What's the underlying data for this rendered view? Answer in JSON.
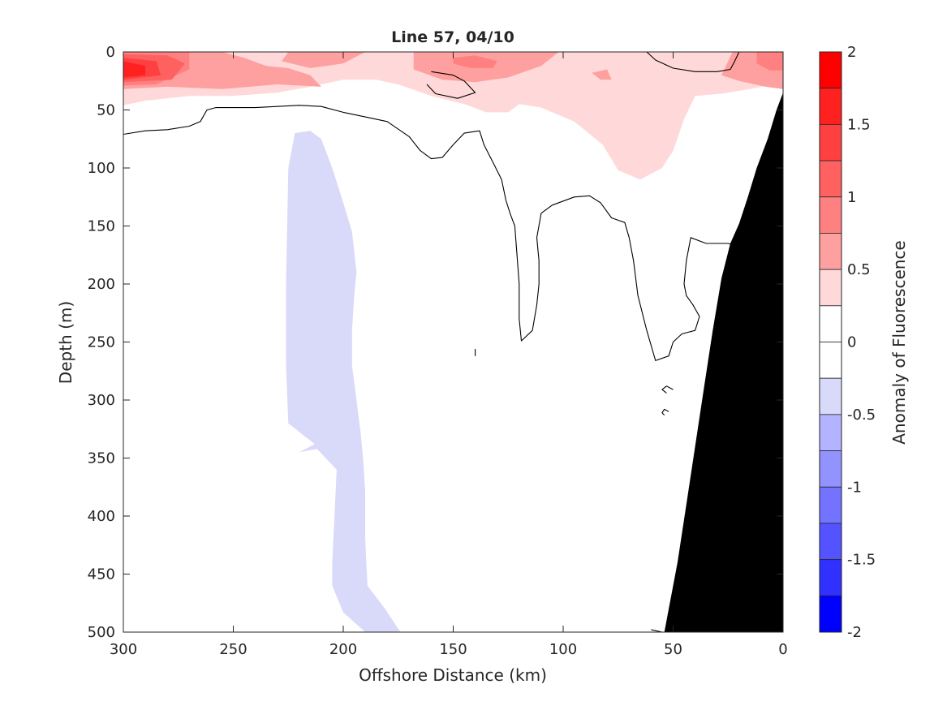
{
  "chart_data": {
    "type": "heatmap",
    "title": "Line 57, 04/10",
    "xlabel": "Offshore Distance (km)",
    "ylabel": "Depth (m)",
    "xlim": [
      300,
      0
    ],
    "ylim": [
      0,
      500
    ],
    "x_reversed": true,
    "y_reversed": true,
    "x_ticks": [
      "300",
      "250",
      "200",
      "150",
      "100",
      "50",
      "0"
    ],
    "y_ticks": [
      "0",
      "50",
      "100",
      "150",
      "200",
      "250",
      "300",
      "350",
      "400",
      "450",
      "500"
    ],
    "colorbar": {
      "label": "Anomaly of Fluorescence",
      "clim": [
        -2,
        2
      ],
      "step": 0.25,
      "ticks": [
        "2",
        "1.5",
        "1",
        "0.5",
        "0",
        "-0.5",
        "-1",
        "-1.5",
        "-2"
      ],
      "levels": [
        {
          "range": [
            1.75,
            2
          ],
          "color": "#ff0000"
        },
        {
          "range": [
            1.5,
            1.75
          ],
          "color": "#ff2020"
        },
        {
          "range": [
            1.25,
            1.5
          ],
          "color": "#ff4040"
        },
        {
          "range": [
            1,
            1.25
          ],
          "color": "#ff6060"
        },
        {
          "range": [
            0.75,
            1
          ],
          "color": "#ff8080"
        },
        {
          "range": [
            0.5,
            0.75
          ],
          "color": "#ffa0a0"
        },
        {
          "range": [
            0.25,
            0.5
          ],
          "color": "#ffd9d9"
        },
        {
          "range": [
            0,
            0.25
          ],
          "color": "#ffffff"
        },
        {
          "range": [
            -0.25,
            0
          ],
          "color": "#ffffff"
        },
        {
          "range": [
            -0.5,
            -0.25
          ],
          "color": "#d9d9f9"
        },
        {
          "range": [
            -0.75,
            -0.5
          ],
          "color": "#b3b3ff"
        },
        {
          "range": [
            -1,
            -0.75
          ],
          "color": "#9393ff"
        },
        {
          "range": [
            -1.25,
            -1
          ],
          "color": "#7373ff"
        },
        {
          "range": [
            -1.5,
            -1.25
          ],
          "color": "#5353ff"
        },
        {
          "range": [
            -1.75,
            -1.5
          ],
          "color": "#3030ff"
        },
        {
          "range": [
            -2,
            -1.75
          ],
          "color": "#0000ff"
        }
      ]
    },
    "regions": [
      {
        "name": "positive-anomaly-0.25",
        "level": 0.25,
        "color": "#ffd9d9",
        "points": [
          [
            300,
            0
          ],
          [
            0,
            0
          ],
          [
            0,
            20
          ],
          [
            5,
            28
          ],
          [
            15,
            32
          ],
          [
            28,
            36
          ],
          [
            40,
            38
          ],
          [
            45,
            58
          ],
          [
            50,
            85
          ],
          [
            55,
            100
          ],
          [
            65,
            110
          ],
          [
            75,
            102
          ],
          [
            82,
            80
          ],
          [
            95,
            60
          ],
          [
            110,
            48
          ],
          [
            120,
            45
          ],
          [
            125,
            52
          ],
          [
            135,
            52
          ],
          [
            145,
            45
          ],
          [
            160,
            38
          ],
          [
            175,
            28
          ],
          [
            185,
            24
          ],
          [
            200,
            24
          ],
          [
            215,
            30
          ],
          [
            230,
            35
          ],
          [
            250,
            38
          ],
          [
            270,
            38
          ],
          [
            290,
            42
          ],
          [
            300,
            46
          ]
        ]
      },
      {
        "name": "positive-anomaly-0.5",
        "level": 0.5,
        "color": "#ffa0a0",
        "points": [
          [
            300,
            0
          ],
          [
            255,
            0
          ],
          [
            245,
            5
          ],
          [
            235,
            12
          ],
          [
            225,
            14
          ],
          [
            215,
            20
          ],
          [
            210,
            30
          ],
          [
            230,
            28
          ],
          [
            255,
            32
          ],
          [
            280,
            30
          ],
          [
            300,
            32
          ]
        ]
      },
      {
        "name": "positive-anomaly-0.5",
        "level": 0.5,
        "color": "#ffa0a0",
        "points": [
          [
            225,
            0
          ],
          [
            190,
            0
          ],
          [
            200,
            10
          ],
          [
            215,
            14
          ],
          [
            228,
            8
          ]
        ]
      },
      {
        "name": "positive-anomaly-0.5",
        "level": 0.5,
        "color": "#ffa0a0",
        "points": [
          [
            168,
            0
          ],
          [
            102,
            0
          ],
          [
            110,
            12
          ],
          [
            125,
            22
          ],
          [
            140,
            26
          ],
          [
            155,
            24
          ],
          [
            168,
            15
          ]
        ]
      },
      {
        "name": "positive-anomaly-0.5",
        "level": 0.5,
        "color": "#ffa0a0",
        "points": [
          [
            80,
            15
          ],
          [
            87,
            18
          ],
          [
            83,
            24
          ],
          [
            78,
            24
          ]
        ]
      },
      {
        "name": "positive-anomaly-0.5",
        "level": 0.5,
        "color": "#ffa0a0",
        "points": [
          [
            23,
            0
          ],
          [
            0,
            0
          ],
          [
            0,
            32
          ],
          [
            8,
            30
          ],
          [
            20,
            25
          ],
          [
            28,
            20
          ],
          [
            25,
            8
          ]
        ]
      },
      {
        "name": "positive-anomaly-0.75",
        "level": 0.75,
        "color": "#ff8080",
        "points": [
          [
            300,
            0
          ],
          [
            270,
            0
          ],
          [
            270,
            15
          ],
          [
            285,
            28
          ],
          [
            300,
            29
          ]
        ]
      },
      {
        "name": "positive-anomaly-0.75",
        "level": 0.75,
        "color": "#ff8080",
        "points": [
          [
            150,
            5
          ],
          [
            140,
            3
          ],
          [
            130,
            8
          ],
          [
            132,
            14
          ],
          [
            142,
            14
          ],
          [
            150,
            10
          ]
        ]
      },
      {
        "name": "positive-anomaly-0.75",
        "level": 0.75,
        "color": "#ff8080",
        "points": [
          [
            12,
            0
          ],
          [
            0,
            0
          ],
          [
            0,
            16
          ],
          [
            6,
            16
          ],
          [
            12,
            10
          ]
        ]
      },
      {
        "name": "positive-anomaly-1",
        "level": 1,
        "color": "#ff6060",
        "points": [
          [
            300,
            2
          ],
          [
            280,
            3
          ],
          [
            272,
            10
          ],
          [
            278,
            24
          ],
          [
            300,
            26
          ]
        ]
      },
      {
        "name": "positive-anomaly-1.25",
        "level": 1.25,
        "color": "#ff4040",
        "points": [
          [
            300,
            5
          ],
          [
            285,
            8
          ],
          [
            283,
            20
          ],
          [
            300,
            24
          ]
        ]
      },
      {
        "name": "positive-anomaly-1.5",
        "level": 1.5,
        "color": "#ff2020",
        "points": [
          [
            300,
            8
          ],
          [
            290,
            12
          ],
          [
            290,
            20
          ],
          [
            300,
            22
          ]
        ]
      },
      {
        "name": "negative-anomaly-0.25",
        "level": -0.25,
        "color": "#d9d9f9",
        "points": [
          [
            222,
            70
          ],
          [
            215,
            68
          ],
          [
            210,
            75
          ],
          [
            205,
            100
          ],
          [
            200,
            130
          ],
          [
            196,
            155
          ],
          [
            194,
            190
          ],
          [
            195,
            210
          ],
          [
            196,
            240
          ],
          [
            196,
            270
          ],
          [
            194,
            300
          ],
          [
            192,
            330
          ],
          [
            191,
            350
          ],
          [
            190,
            380
          ],
          [
            190,
            420
          ],
          [
            189,
            460
          ],
          [
            181,
            480
          ],
          [
            174,
            500
          ],
          [
            190,
            500
          ],
          [
            200,
            483
          ],
          [
            205,
            460
          ],
          [
            205,
            440
          ],
          [
            204,
            400
          ],
          [
            203,
            360
          ],
          [
            212,
            342
          ],
          [
            220,
            345
          ],
          [
            213,
            338
          ],
          [
            225,
            320
          ],
          [
            226,
            270
          ],
          [
            226,
            200
          ],
          [
            225,
            100
          ]
        ]
      }
    ],
    "contours": [
      {
        "name": "zero-contour",
        "level": 0,
        "points": [
          [
            300,
            71
          ],
          [
            290,
            68
          ],
          [
            280,
            67
          ],
          [
            270,
            64
          ],
          [
            265,
            60
          ],
          [
            262,
            50
          ],
          [
            258,
            48
          ],
          [
            240,
            48
          ],
          [
            220,
            46
          ],
          [
            210,
            47
          ],
          [
            200,
            52
          ],
          [
            190,
            56
          ],
          [
            180,
            60
          ],
          [
            170,
            73
          ],
          [
            165,
            85
          ],
          [
            160,
            92
          ],
          [
            155,
            91
          ],
          [
            150,
            80
          ],
          [
            145,
            70
          ],
          [
            138,
            68
          ],
          [
            136,
            80
          ],
          [
            132,
            95
          ],
          [
            128,
            110
          ],
          [
            126,
            128
          ],
          [
            124,
            140
          ],
          [
            122,
            150
          ],
          [
            121,
            175
          ],
          [
            120,
            200
          ],
          [
            120,
            230
          ],
          [
            119,
            249
          ],
          [
            114,
            240
          ],
          [
            112,
            218
          ],
          [
            111,
            200
          ],
          [
            111,
            180
          ],
          [
            112,
            160
          ],
          [
            110,
            139
          ],
          [
            105,
            132
          ],
          [
            95,
            125
          ],
          [
            88,
            124
          ],
          [
            83,
            130
          ],
          [
            78,
            143
          ],
          [
            72,
            147
          ],
          [
            70,
            160
          ],
          [
            68,
            180
          ],
          [
            66,
            210
          ],
          [
            62,
            240
          ],
          [
            58,
            266
          ],
          [
            52,
            262
          ],
          [
            50,
            250
          ],
          [
            46,
            243
          ],
          [
            40,
            240
          ],
          [
            38,
            228
          ],
          [
            41,
            218
          ],
          [
            44,
            210
          ],
          [
            45,
            200
          ],
          [
            44,
            180
          ],
          [
            42,
            160
          ],
          [
            35,
            165
          ],
          [
            25,
            165
          ],
          [
            20,
            168
          ],
          [
            15,
            175
          ],
          [
            14,
            190
          ],
          [
            10,
            200
          ],
          [
            8,
            220
          ],
          [
            6,
            260
          ],
          [
            5,
            300
          ],
          [
            4,
            340
          ],
          [
            4,
            380
          ],
          [
            3,
            420
          ],
          [
            2,
            460
          ],
          [
            2,
            500
          ]
        ]
      },
      {
        "name": "zero-contour",
        "level": 0,
        "points": [
          [
            160,
            17
          ],
          [
            150,
            20
          ],
          [
            145,
            25
          ],
          [
            140,
            35
          ],
          [
            148,
            40
          ],
          [
            158,
            36
          ],
          [
            162,
            28
          ]
        ]
      },
      {
        "name": "zero-contour",
        "level": 0,
        "points": [
          [
            62,
            0
          ],
          [
            58,
            7
          ],
          [
            50,
            14
          ],
          [
            40,
            17
          ],
          [
            30,
            17
          ],
          [
            24,
            15
          ],
          [
            22,
            8
          ],
          [
            20,
            0
          ]
        ]
      },
      {
        "name": "zero-contour",
        "level": 0,
        "points": [
          [
            50,
            291
          ],
          [
            53,
            288
          ],
          [
            55,
            291
          ],
          [
            53,
            294
          ]
        ]
      },
      {
        "name": "zero-contour",
        "level": 0,
        "points": [
          [
            52,
            310
          ],
          [
            54,
            308
          ],
          [
            55,
            311
          ],
          [
            54,
            313
          ]
        ]
      },
      {
        "name": "zero-contour",
        "level": 0,
        "points": [
          [
            140,
            256
          ],
          [
            140,
            262
          ]
        ]
      },
      {
        "name": "zero-contour",
        "level": 0,
        "points": [
          [
            60,
            498
          ],
          [
            55,
            500
          ]
        ]
      }
    ],
    "bathymetry": {
      "color": "#000000",
      "points": [
        [
          0,
          35
        ],
        [
          3,
          50
        ],
        [
          7,
          75
        ],
        [
          12,
          100
        ],
        [
          16,
          125
        ],
        [
          20,
          148
        ],
        [
          24,
          165
        ],
        [
          28,
          195
        ],
        [
          32,
          240
        ],
        [
          36,
          290
        ],
        [
          40,
          340
        ],
        [
          44,
          390
        ],
        [
          48,
          440
        ],
        [
          52,
          480
        ],
        [
          54,
          500
        ],
        [
          0,
          500
        ]
      ]
    }
  }
}
